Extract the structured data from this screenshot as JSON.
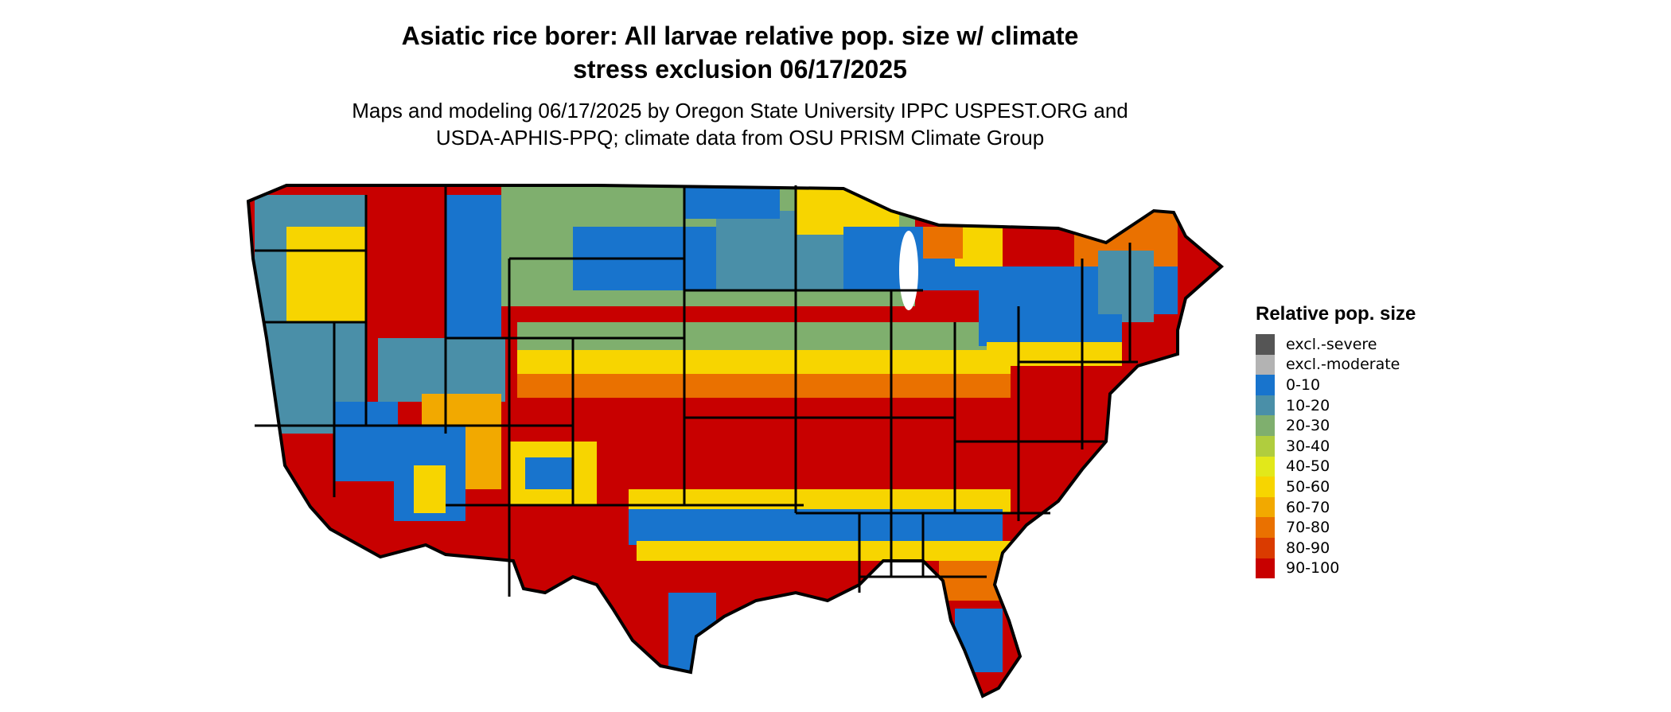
{
  "title": "Asiatic rice borer: All larvae relative pop. size w/ climate\nstress exclusion 06/17/2025",
  "subtitle": "Maps and modeling 06/17/2025 by Oregon State University IPPC USPEST.ORG and\nUSDA-APHIS-PPQ; climate data from OSU PRISM Climate Group",
  "legend": {
    "title": "Relative pop. size",
    "items": [
      {
        "label": "excl.-severe",
        "color": "#555555"
      },
      {
        "label": "excl.-moderate",
        "color": "#b3b3b3"
      },
      {
        "label": "0-10",
        "color": "#1874cd"
      },
      {
        "label": "10-20",
        "color": "#4a8fa8"
      },
      {
        "label": "20-30",
        "color": "#7faf6e"
      },
      {
        "label": "30-40",
        "color": "#b0cd3e"
      },
      {
        "label": "40-50",
        "color": "#e2e81a"
      },
      {
        "label": "50-60",
        "color": "#f7d500"
      },
      {
        "label": "60-70",
        "color": "#f2a900"
      },
      {
        "label": "70-80",
        "color": "#ea7100"
      },
      {
        "label": "80-90",
        "color": "#da3b00"
      },
      {
        "label": "90-100",
        "color": "#c80000"
      }
    ]
  }
}
